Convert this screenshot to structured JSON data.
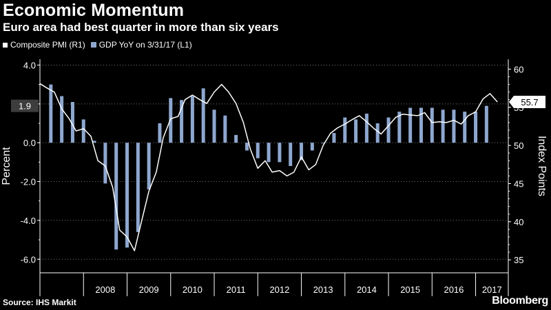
{
  "header": {
    "title": "Economic Momentum",
    "subtitle": "Euro area had best quarter in more than six years"
  },
  "legend": {
    "line_label": "Composite PMI (R1)",
    "bar_label": "GDP YoY on 3/31/17 (L1)"
  },
  "footer": {
    "source": "Source: IHS Markit",
    "brand": "Bloomberg"
  },
  "colors": {
    "background": "#000000",
    "line": "#ffffff",
    "bar": "#8ea7cf",
    "grid": "#7a7a7a",
    "highlight_box": "#3d3d3d"
  },
  "chart_data": {
    "type": "bar+line",
    "x_axis": {
      "categories": [
        "2008",
        "2009",
        "2010",
        "2011",
        "2012",
        "2013",
        "2014",
        "2015",
        "2016",
        "2017"
      ]
    },
    "y_left": {
      "label": "Percent",
      "ticks": [
        "4.0",
        "2.0",
        "0.0",
        "-2.0",
        "-4.0",
        "-6.0"
      ],
      "range": [
        -6.7,
        4.3
      ]
    },
    "y_right": {
      "label": "Index Points",
      "ticks": [
        "60",
        "55",
        "50",
        "45",
        "40",
        "35"
      ],
      "range": [
        33.3,
        61.3
      ]
    },
    "left_highlight": "1.9",
    "right_highlight": "55.7",
    "gdp_series": {
      "name": "GDP YoY on 3/31/17",
      "x": [
        2007.0,
        2007.25,
        2007.5,
        2007.75,
        2008.0,
        2008.25,
        2008.5,
        2008.75,
        2009.0,
        2009.25,
        2009.5,
        2009.75,
        2010.0,
        2010.25,
        2010.5,
        2010.75,
        2011.0,
        2011.25,
        2011.5,
        2011.75,
        2012.0,
        2012.25,
        2012.5,
        2012.75,
        2013.0,
        2013.25,
        2013.5,
        2013.75,
        2014.0,
        2014.25,
        2014.5,
        2014.75,
        2015.0,
        2015.25,
        2015.5,
        2015.75,
        2016.0,
        2016.25,
        2016.5,
        2016.75,
        2017.0
      ],
      "values": [
        3.0,
        2.4,
        2.1,
        1.2,
        0.1,
        -2.1,
        -5.5,
        -5.4,
        -4.6,
        -2.4,
        1.0,
        2.3,
        2.2,
        2.4,
        2.8,
        1.7,
        1.4,
        0.4,
        -0.4,
        -0.8,
        -1.0,
        -1.0,
        -1.2,
        -0.9,
        -0.4,
        0.0,
        0.5,
        1.3,
        1.2,
        1.5,
        1.0,
        1.3,
        1.6,
        1.8,
        1.8,
        1.8,
        1.7,
        1.7,
        1.6,
        1.6,
        1.9
      ]
    },
    "pmi_series": {
      "name": "Composite PMI",
      "x": [
        2007.0,
        2007.17,
        2007.33,
        2007.5,
        2007.67,
        2007.83,
        2008.0,
        2008.17,
        2008.33,
        2008.5,
        2008.67,
        2008.83,
        2009.0,
        2009.17,
        2009.33,
        2009.5,
        2009.67,
        2009.83,
        2010.0,
        2010.17,
        2010.33,
        2010.5,
        2010.67,
        2010.83,
        2011.0,
        2011.17,
        2011.33,
        2011.5,
        2011.67,
        2011.83,
        2012.0,
        2012.17,
        2012.33,
        2012.5,
        2012.67,
        2012.83,
        2013.0,
        2013.17,
        2013.33,
        2013.5,
        2013.67,
        2013.83,
        2014.0,
        2014.17,
        2014.33,
        2014.5,
        2014.67,
        2014.83,
        2015.0,
        2015.17,
        2015.33,
        2015.5,
        2015.67,
        2015.83,
        2016.0,
        2016.17,
        2016.33,
        2016.5,
        2016.67,
        2016.83,
        2017.0,
        2017.17,
        2017.33,
        2017.5
      ],
      "values": [
        58.1,
        57.5,
        57.0,
        54.8,
        53.5,
        51.9,
        52.2,
        51.2,
        48.0,
        47.3,
        44.5,
        38.9,
        38.0,
        36.2,
        40.0,
        44.0,
        46.5,
        51.0,
        53.5,
        53.8,
        56.0,
        56.6,
        56.0,
        55.5,
        57.0,
        58.0,
        57.0,
        55.5,
        53.0,
        49.5,
        47.0,
        48.0,
        46.5,
        46.7,
        46.0,
        46.5,
        48.5,
        46.8,
        47.5,
        50.0,
        51.6,
        52.3,
        52.8,
        53.4,
        53.9,
        53.1,
        52.2,
        51.5,
        52.6,
        53.7,
        54.1,
        54.0,
        53.9,
        54.3,
        53.0,
        53.1,
        53.0,
        53.3,
        52.8,
        53.9,
        54.4,
        56.1,
        56.8,
        55.7
      ]
    }
  }
}
